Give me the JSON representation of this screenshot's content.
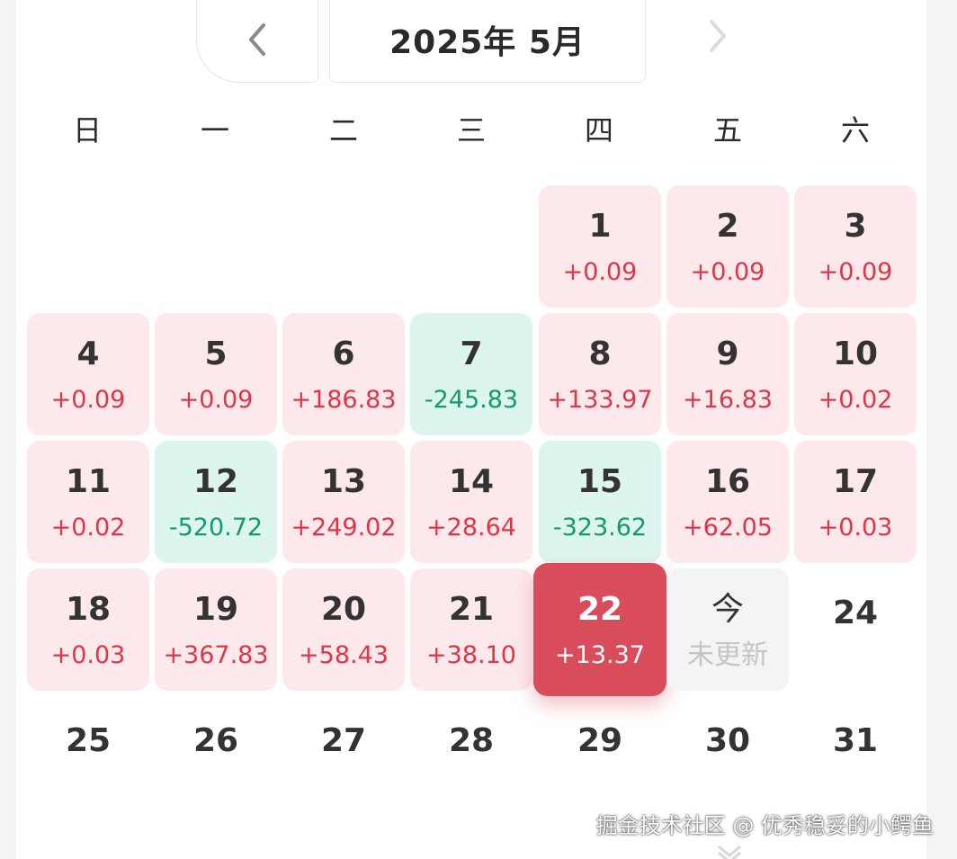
{
  "header": {
    "title": "2025年 5月"
  },
  "weekdays": [
    "日",
    "一",
    "二",
    "三",
    "四",
    "五",
    "六"
  ],
  "days": [
    {
      "day": "1",
      "value": "+0.09",
      "status": "up"
    },
    {
      "day": "2",
      "value": "+0.09",
      "status": "up"
    },
    {
      "day": "3",
      "value": "+0.09",
      "status": "up"
    },
    {
      "day": "4",
      "value": "+0.09",
      "status": "up"
    },
    {
      "day": "5",
      "value": "+0.09",
      "status": "up"
    },
    {
      "day": "6",
      "value": "+186.83",
      "status": "up"
    },
    {
      "day": "7",
      "value": "-245.83",
      "status": "down"
    },
    {
      "day": "8",
      "value": "+133.97",
      "status": "up"
    },
    {
      "day": "9",
      "value": "+16.83",
      "status": "up"
    },
    {
      "day": "10",
      "value": "+0.02",
      "status": "up"
    },
    {
      "day": "11",
      "value": "+0.02",
      "status": "up"
    },
    {
      "day": "12",
      "value": "-520.72",
      "status": "down"
    },
    {
      "day": "13",
      "value": "+249.02",
      "status": "up"
    },
    {
      "day": "14",
      "value": "+28.64",
      "status": "up"
    },
    {
      "day": "15",
      "value": "-323.62",
      "status": "down"
    },
    {
      "day": "16",
      "value": "+62.05",
      "status": "up"
    },
    {
      "day": "17",
      "value": "+0.03",
      "status": "up"
    },
    {
      "day": "18",
      "value": "+0.03",
      "status": "up"
    },
    {
      "day": "19",
      "value": "+367.83",
      "status": "up"
    },
    {
      "day": "20",
      "value": "+58.43",
      "status": "up"
    },
    {
      "day": "21",
      "value": "+38.10",
      "status": "up"
    },
    {
      "day": "22",
      "value": "+13.37",
      "status": "today"
    },
    {
      "day": "今",
      "value": "未更新",
      "status": "pending"
    },
    {
      "day": "24",
      "value": "",
      "status": "plain"
    },
    {
      "day": "25",
      "value": "",
      "status": "plain"
    },
    {
      "day": "26",
      "value": "",
      "status": "plain"
    },
    {
      "day": "27",
      "value": "",
      "status": "plain"
    },
    {
      "day": "28",
      "value": "",
      "status": "plain"
    },
    {
      "day": "29",
      "value": "",
      "status": "plain"
    },
    {
      "day": "30",
      "value": "",
      "status": "plain"
    },
    {
      "day": "31",
      "value": "",
      "status": "plain"
    }
  ],
  "watermark": "掘金技术社区 @ 优秀稳妥的小鳄鱼",
  "colors": {
    "up_bg": "#fde9eb",
    "up_text": "#e03547",
    "down_bg": "#dcf5ee",
    "down_text": "#149a6b",
    "today_bg": "#d94c5b",
    "pending_bg": "#f4f4f4"
  }
}
